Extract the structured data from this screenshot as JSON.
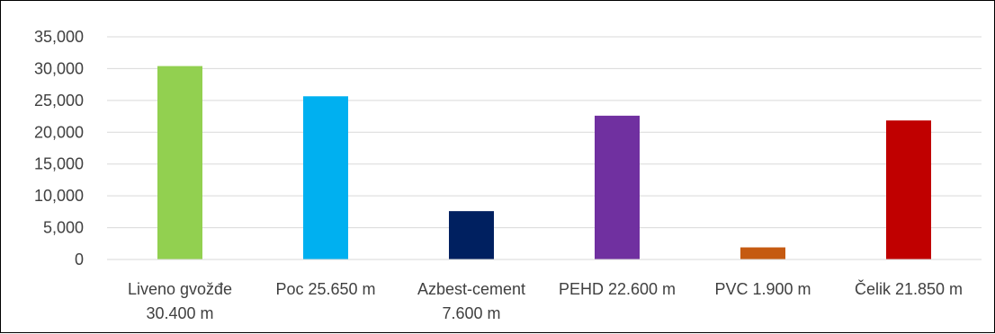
{
  "chart_data": {
    "type": "bar",
    "title": "",
    "xlabel": "",
    "ylabel": "",
    "categories": [
      [
        "Liveno gvožđe",
        "30.400 m"
      ],
      [
        "Poc 25.650 m"
      ],
      [
        "Azbest-cement",
        "7.600 m"
      ],
      [
        "PEHD 22.600 m"
      ],
      [
        "PVC 1.900 m"
      ],
      [
        "Čelik 21.850 m"
      ]
    ],
    "values": [
      30400,
      25650,
      7600,
      22600,
      1900,
      21850
    ],
    "colors": [
      "#92d050",
      "#00b0f0",
      "#002060",
      "#7030a0",
      "#c55a11",
      "#c00000"
    ],
    "ylim": [
      0,
      35000
    ],
    "yticks": [
      0,
      5000,
      10000,
      15000,
      20000,
      25000,
      30000,
      35000
    ],
    "ytick_labels": [
      "0",
      "5,000",
      "10,000",
      "15,000",
      "20,000",
      "25,000",
      "30,000",
      "35,000"
    ],
    "grid": true,
    "legend": "none"
  }
}
